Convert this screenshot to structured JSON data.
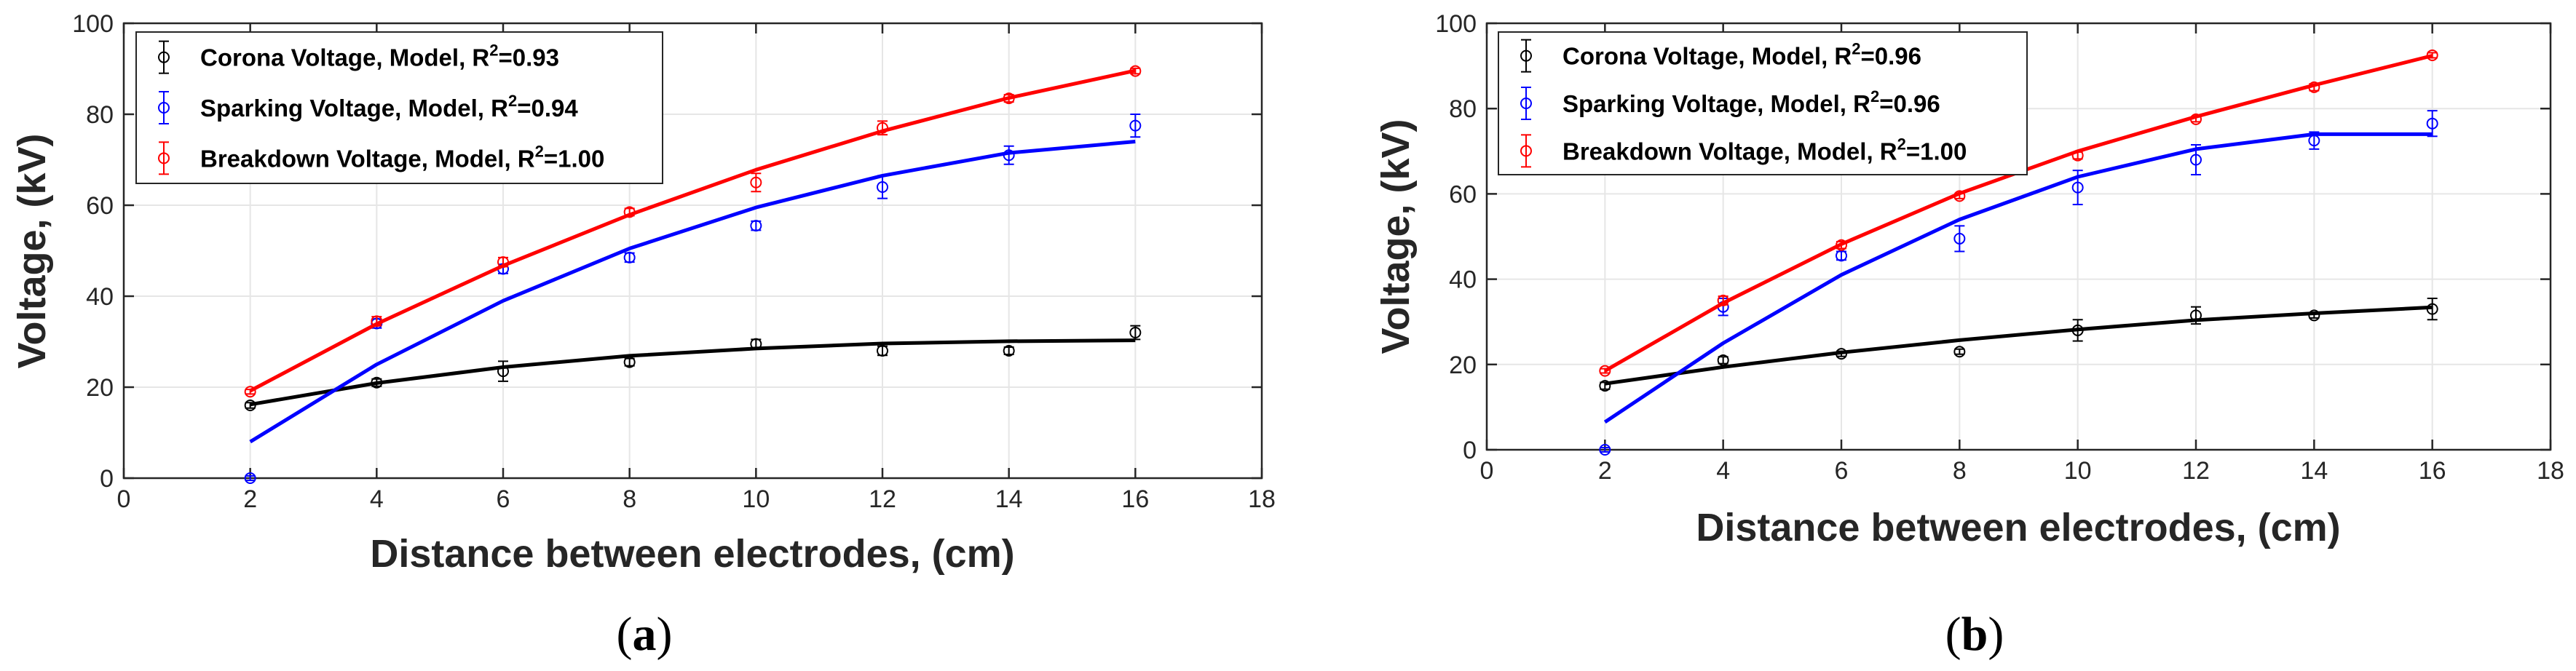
{
  "figure": {
    "colors": {
      "corona": "#000000",
      "sparking": "#0000ff",
      "breakdown": "#ff0000",
      "grid": "#e6e6e6",
      "axis": "#262626"
    }
  },
  "chart_data": [
    {
      "type": "scatter",
      "panel_label": "(a)",
      "panel_letter": "a",
      "xlabel": "Distance between electrodes, (cm)",
      "ylabel": "Voltage, (kV)",
      "xlim": [
        0,
        18
      ],
      "ylim": [
        0,
        100
      ],
      "xticks": [
        "0",
        "2",
        "4",
        "6",
        "8",
        "10",
        "12",
        "14",
        "16",
        "18"
      ],
      "yticks": [
        "0",
        "20",
        "40",
        "60",
        "80",
        "100"
      ],
      "grid": true,
      "legend_position": "top-left",
      "series": [
        {
          "key": "corona",
          "legend_prefix": "Corona Voltage, Model, R",
          "r2": "0.93",
          "x": [
            2,
            4,
            6,
            8,
            10,
            12,
            14,
            16
          ],
          "y": [
            16,
            21,
            23.5,
            25.5,
            29.5,
            28,
            28,
            32
          ],
          "err": [
            0.6,
            0.8,
            2.2,
            0.8,
            1.0,
            1.0,
            0.8,
            1.5
          ],
          "model_x": [
            2,
            4,
            6,
            8,
            10,
            12,
            14,
            16
          ],
          "model_y": [
            16.2,
            20.9,
            24.4,
            26.9,
            28.5,
            29.6,
            30.1,
            30.3
          ]
        },
        {
          "key": "sparking",
          "legend_prefix": "Sparking Voltage, Model, R",
          "r2": "0.94",
          "x": [
            2,
            4,
            6,
            8,
            10,
            12,
            14,
            16
          ],
          "y": [
            0,
            34,
            46,
            48.5,
            55.5,
            64,
            71,
            77.5
          ],
          "err": [
            0.5,
            1.0,
            1.0,
            1.0,
            1.0,
            2.5,
            2.0,
            2.5
          ],
          "model_x": [
            2,
            4,
            6,
            8,
            10,
            12,
            14,
            16
          ],
          "model_y": [
            8,
            25,
            39,
            50.5,
            59.5,
            66.5,
            71.5,
            74
          ]
        },
        {
          "key": "breakdown",
          "legend_prefix": "Breakdown Voltage, Model, R",
          "r2": "1.00",
          "x": [
            2,
            4,
            6,
            8,
            10,
            12,
            14,
            16
          ],
          "y": [
            19,
            34.5,
            47.5,
            58.5,
            65,
            77,
            83.5,
            89.5
          ],
          "err": [
            0.5,
            1.0,
            1.0,
            0.8,
            2.0,
            1.5,
            0.8,
            0.6
          ],
          "model_x": [
            2,
            4,
            6,
            8,
            10,
            12,
            14,
            16
          ],
          "model_y": [
            19.2,
            33.9,
            46.7,
            57.9,
            67.8,
            76.3,
            83.6,
            89.6
          ]
        }
      ]
    },
    {
      "type": "scatter",
      "panel_label": "(b)",
      "panel_letter": "b",
      "xlabel": "Distance between electrodes, (cm)",
      "ylabel": "Voltage, (kV)",
      "xlim": [
        0,
        18
      ],
      "ylim": [
        0,
        100
      ],
      "xticks": [
        "0",
        "2",
        "4",
        "6",
        "8",
        "10",
        "12",
        "14",
        "16",
        "18"
      ],
      "yticks": [
        "0",
        "20",
        "40",
        "60",
        "80",
        "100"
      ],
      "grid": true,
      "legend_position": "top-left",
      "series": [
        {
          "key": "corona",
          "legend_prefix": "Corona Voltage, Model, R",
          "r2": "0.96",
          "x": [
            2,
            4,
            6,
            8,
            10,
            12,
            14,
            16
          ],
          "y": [
            15,
            21,
            22.5,
            23,
            28,
            31.5,
            31.5,
            33
          ],
          "err": [
            0.8,
            0.8,
            0.6,
            0.6,
            2.5,
            2.0,
            0.6,
            2.5
          ],
          "model_x": [
            2,
            4,
            6,
            8,
            10,
            12,
            14,
            16
          ],
          "model_y": [
            15.5,
            19.4,
            22.8,
            25.7,
            28.2,
            30.4,
            32,
            33.4
          ]
        },
        {
          "key": "sparking",
          "legend_prefix": "Sparking Voltage, Model, R",
          "r2": "0.96",
          "x": [
            2,
            4,
            6,
            8,
            10,
            12,
            14,
            16
          ],
          "y": [
            0,
            33.5,
            45.5,
            49.5,
            61.5,
            68,
            72.5,
            76.5
          ],
          "err": [
            0.5,
            2.0,
            1.0,
            3.0,
            4.0,
            3.5,
            2.0,
            3.0
          ],
          "model_x": [
            2,
            4,
            6,
            8,
            10,
            12,
            14,
            16
          ],
          "model_y": [
            6.5,
            25,
            41,
            54,
            64,
            70.5,
            74,
            74
          ]
        },
        {
          "key": "breakdown",
          "legend_prefix": "Breakdown Voltage, Model, R",
          "r2": "1.00",
          "x": [
            2,
            4,
            6,
            8,
            10,
            12,
            14,
            16
          ],
          "y": [
            18.5,
            35,
            48,
            59.5,
            69,
            77.5,
            85,
            92.5
          ],
          "err": [
            0.5,
            1.0,
            0.8,
            0.6,
            0.8,
            0.6,
            0.8,
            0.6
          ],
          "model_x": [
            2,
            4,
            6,
            8,
            10,
            12,
            14,
            16
          ],
          "model_y": [
            18.5,
            34.4,
            48.2,
            60.1,
            70,
            78.1,
            85.5,
            92.4
          ]
        }
      ]
    }
  ]
}
